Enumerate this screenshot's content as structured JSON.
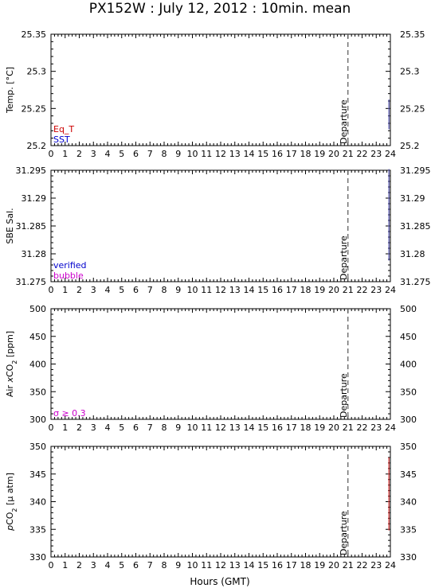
{
  "figure": {
    "title": "PX152W : July 12, 2012 : 10min. mean",
    "xlabel": "Hours (GMT)",
    "event_label": "Departure",
    "event_hour": 21
  },
  "chart_data": [
    {
      "type": "line",
      "ylabel": "Temp. [°C]",
      "ylabel_parts": [
        {
          "t": "Temp. [°C]"
        }
      ],
      "xlim": [
        0,
        24
      ],
      "xticks": [
        0,
        1,
        2,
        3,
        4,
        5,
        6,
        7,
        8,
        9,
        10,
        11,
        12,
        13,
        14,
        15,
        16,
        17,
        18,
        19,
        20,
        21,
        22,
        23,
        24
      ],
      "ylim": [
        25.2,
        25.35
      ],
      "yticks": [
        "25.2",
        "25.25",
        "25.3",
        "25.35"
      ],
      "legend": [
        {
          "label": "Eq_T",
          "color": "#cc0000"
        },
        {
          "label": "SST",
          "color": "#0000cc"
        }
      ],
      "series": [
        {
          "name": "SST",
          "color": "#5555aa",
          "x": [
            23.9,
            23.9
          ],
          "y": [
            25.222,
            25.262
          ]
        }
      ]
    },
    {
      "type": "line",
      "ylabel": "SBE Sal.",
      "ylabel_parts": [
        {
          "t": "SBE Sal."
        }
      ],
      "xlim": [
        0,
        24
      ],
      "xticks": [
        0,
        1,
        2,
        3,
        4,
        5,
        6,
        7,
        8,
        9,
        10,
        11,
        12,
        13,
        14,
        15,
        16,
        17,
        18,
        19,
        20,
        21,
        22,
        23,
        24
      ],
      "ylim": [
        31.275,
        31.295
      ],
      "yticks": [
        "31.275",
        "31.28",
        "31.285",
        "31.29",
        "31.295"
      ],
      "legend": [
        {
          "label": "verified",
          "color": "#0000cc"
        },
        {
          "label": "bubble",
          "color": "#cc00cc"
        }
      ],
      "series": [
        {
          "name": "verified",
          "color": "#5555aa",
          "x": [
            23.9,
            23.9
          ],
          "y": [
            31.2788,
            31.2952
          ]
        }
      ]
    },
    {
      "type": "line",
      "ylabel": "Air xCO2 [ppm]",
      "ylabel_parts": [
        {
          "t": "Air "
        },
        {
          "t": "x",
          "style": "italic"
        },
        {
          "t": "CO"
        },
        {
          "t": "2",
          "sub": true
        },
        {
          "t": " [ppm]"
        }
      ],
      "xlim": [
        0,
        24
      ],
      "xticks": [
        0,
        1,
        2,
        3,
        4,
        5,
        6,
        7,
        8,
        9,
        10,
        11,
        12,
        13,
        14,
        15,
        16,
        17,
        18,
        19,
        20,
        21,
        22,
        23,
        24
      ],
      "ylim": [
        300,
        500
      ],
      "yticks": [
        "300",
        "350",
        "400",
        "450",
        "500"
      ],
      "legend": [
        {
          "label": "σ ≥ 0.3",
          "color": "#cc00cc"
        }
      ],
      "series": []
    },
    {
      "type": "line",
      "ylabel": "pCO2 [μ atm]",
      "ylabel_parts": [
        {
          "t": "p",
          "style": "italic"
        },
        {
          "t": "CO"
        },
        {
          "t": "2",
          "sub": true
        },
        {
          "t": " [μ atm]"
        }
      ],
      "xlim": [
        0,
        24
      ],
      "xticks": [
        0,
        1,
        2,
        3,
        4,
        5,
        6,
        7,
        8,
        9,
        10,
        11,
        12,
        13,
        14,
        15,
        16,
        17,
        18,
        19,
        20,
        21,
        22,
        23,
        24
      ],
      "ylim": [
        330,
        350
      ],
      "yticks": [
        "330",
        "335",
        "340",
        "345",
        "350"
      ],
      "legend": [],
      "series": [
        {
          "name": "pCO2",
          "color": "#cc3333",
          "x": [
            23.9,
            23.9
          ],
          "y": [
            334.8,
            348.0
          ]
        }
      ]
    }
  ]
}
